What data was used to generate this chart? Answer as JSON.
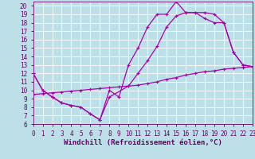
{
  "xlabel": "Windchill (Refroidissement éolien,°C)",
  "bg_color": "#bde0e8",
  "line_color": "#aa00aa",
  "grid_color": "#ffffff",
  "xlim": [
    0,
    23
  ],
  "ylim": [
    6,
    20.5
  ],
  "xticks": [
    0,
    1,
    2,
    3,
    4,
    5,
    6,
    7,
    8,
    9,
    10,
    11,
    12,
    13,
    14,
    15,
    16,
    17,
    18,
    19,
    20,
    21,
    22,
    23
  ],
  "yticks": [
    6,
    7,
    8,
    9,
    10,
    11,
    12,
    13,
    14,
    15,
    16,
    17,
    18,
    19,
    20
  ],
  "line1_x": [
    0,
    1,
    2,
    3,
    4,
    5,
    6,
    7,
    8,
    9,
    10,
    11,
    12,
    13,
    14,
    15,
    16,
    17,
    18,
    19,
    20,
    21,
    22,
    23
  ],
  "line1_y": [
    12.0,
    10.0,
    9.2,
    8.5,
    8.2,
    8.0,
    7.2,
    6.5,
    10.0,
    9.2,
    13.0,
    15.0,
    17.5,
    19.0,
    19.0,
    20.5,
    19.2,
    19.2,
    18.5,
    18.0,
    18.0,
    14.5,
    13.0,
    12.8
  ],
  "line2_x": [
    0,
    1,
    2,
    3,
    4,
    5,
    6,
    7,
    8,
    10,
    11,
    12,
    13,
    14,
    15,
    16,
    17,
    18,
    19,
    20,
    21,
    22,
    23
  ],
  "line2_y": [
    12.0,
    10.0,
    9.2,
    8.5,
    8.2,
    8.0,
    7.2,
    6.5,
    9.2,
    10.5,
    12.0,
    13.5,
    15.2,
    17.5,
    18.8,
    19.2,
    19.2,
    19.2,
    19.0,
    18.0,
    14.5,
    13.0,
    12.8
  ],
  "line3_x": [
    0,
    1,
    2,
    3,
    4,
    5,
    6,
    7,
    8,
    9,
    10,
    11,
    12,
    13,
    14,
    15,
    16,
    17,
    18,
    19,
    20,
    21,
    22,
    23
  ],
  "line3_y": [
    9.5,
    9.6,
    9.7,
    9.8,
    9.9,
    10.0,
    10.1,
    10.2,
    10.3,
    10.4,
    10.5,
    10.6,
    10.8,
    11.0,
    11.3,
    11.5,
    11.8,
    12.0,
    12.2,
    12.3,
    12.5,
    12.6,
    12.7,
    12.8
  ],
  "font_color": "#660066",
  "font_family": "monospace",
  "font_size_label": 6.5,
  "font_size_tick": 5.5
}
